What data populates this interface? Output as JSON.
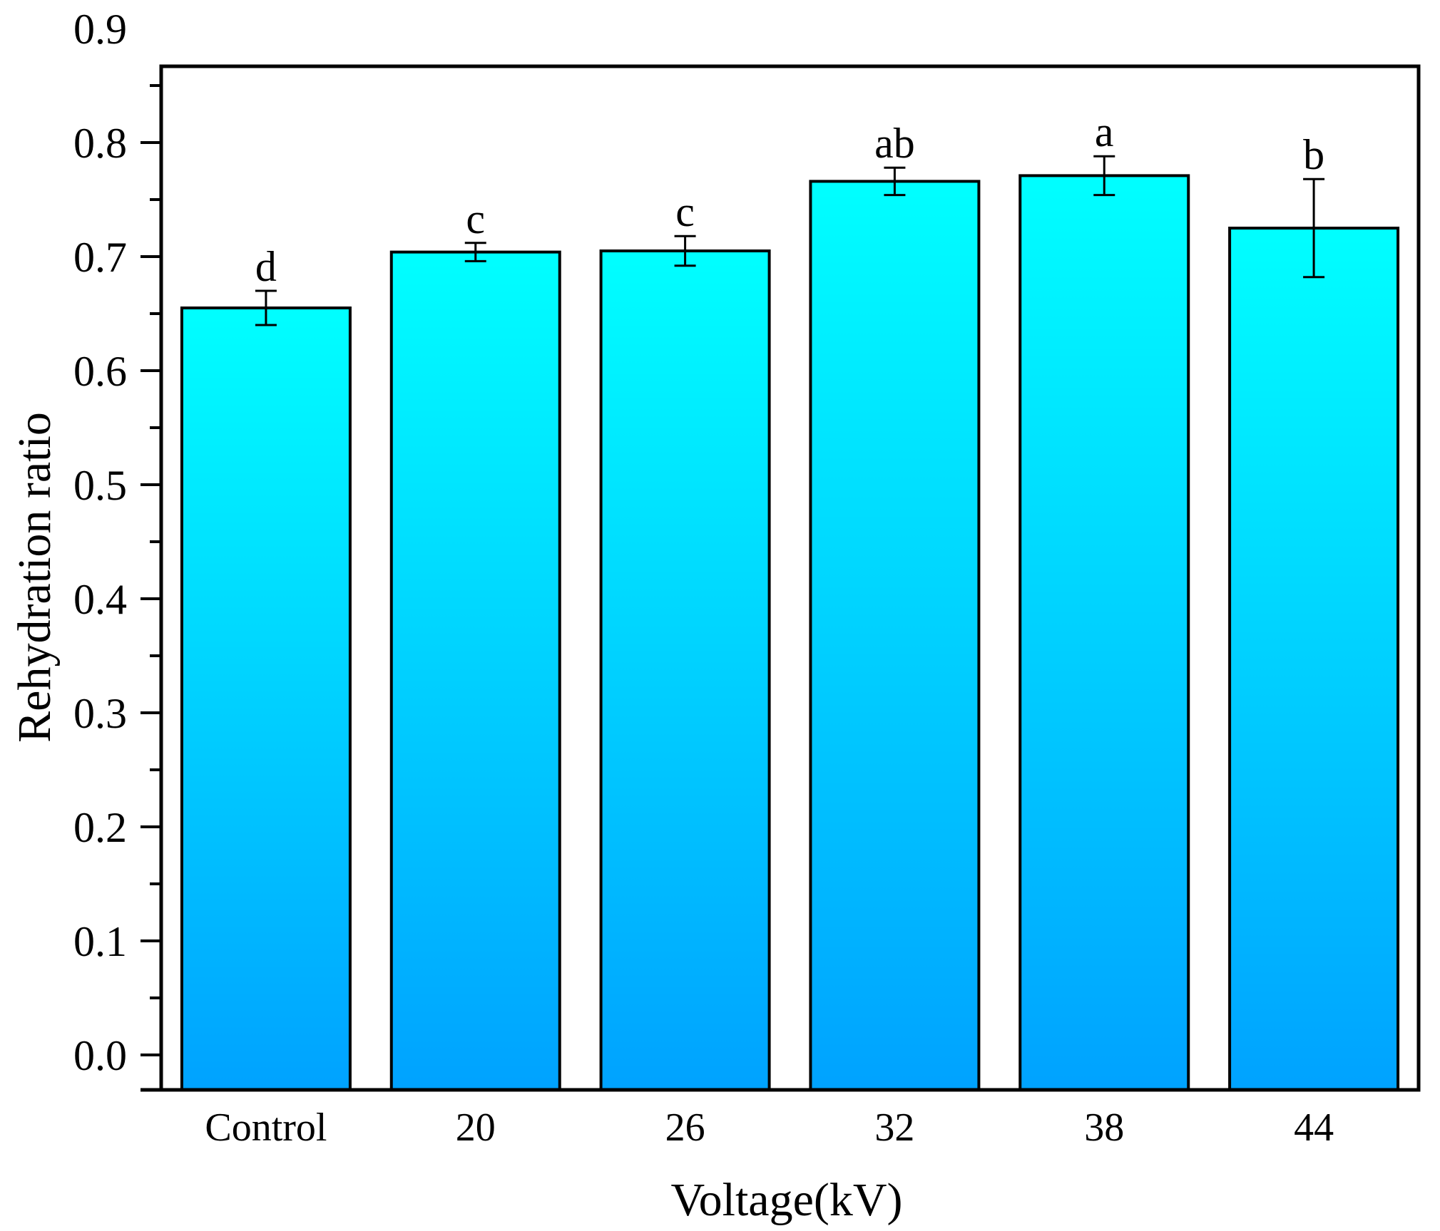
{
  "chart_data": {
    "type": "bar",
    "title": "",
    "xlabel": "Voltage(kV)",
    "ylabel": "Rehydration ratio",
    "ylim": [
      0.0,
      0.9
    ],
    "yticks": [
      "0.0",
      "0.1",
      "0.2",
      "0.3",
      "0.4",
      "0.5",
      "0.6",
      "0.7",
      "0.8",
      "0.9"
    ],
    "categories": [
      "Control",
      "20",
      "26",
      "32",
      "38",
      "44"
    ],
    "values": [
      0.655,
      0.704,
      0.705,
      0.766,
      0.771,
      0.725
    ],
    "errors": [
      0.015,
      0.008,
      0.013,
      0.012,
      0.017,
      0.043
    ],
    "significance": [
      "d",
      "c",
      "c",
      "ab",
      "a",
      "b"
    ],
    "grid": false,
    "colors": {
      "bar_top": "#00ffff",
      "bar_bottom": "#00a2ff",
      "outline": "#000000"
    }
  }
}
